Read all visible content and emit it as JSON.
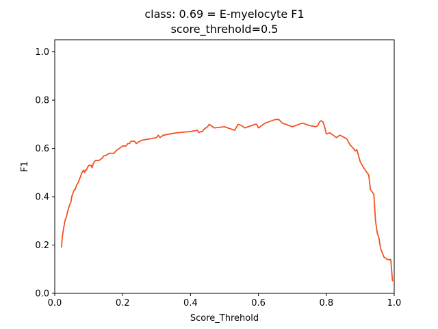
{
  "chart_data": {
    "type": "line",
    "title": "class: 0.69 = E-myelocyte F1",
    "subtitle": "score_threhold=0.5",
    "xlabel": "Score_Threhold",
    "ylabel": "F1",
    "xlim": [
      0.0,
      1.0
    ],
    "ylim": [
      0.0,
      1.05
    ],
    "xticks": [
      "0.0",
      "0.2",
      "0.4",
      "0.6",
      "0.8",
      "1.0"
    ],
    "yticks": [
      "0.0",
      "0.2",
      "0.4",
      "0.6",
      "0.8",
      "1.0"
    ],
    "grid": false,
    "line_color": "#f4511e",
    "series": [
      {
        "x": [
          0.02,
          0.022,
          0.025,
          0.03,
          0.035,
          0.038,
          0.04,
          0.045,
          0.048,
          0.05,
          0.055,
          0.058,
          0.06,
          0.065,
          0.07,
          0.072,
          0.075,
          0.08,
          0.085,
          0.088,
          0.09,
          0.093,
          0.096,
          0.1,
          0.104,
          0.107,
          0.11,
          0.114,
          0.12,
          0.13,
          0.14,
          0.145,
          0.15,
          0.16,
          0.17,
          0.175,
          0.18,
          0.19,
          0.2,
          0.21,
          0.215,
          0.22,
          0.225,
          0.23,
          0.235,
          0.24,
          0.25,
          0.26,
          0.28,
          0.3,
          0.305,
          0.31,
          0.32,
          0.34,
          0.36,
          0.4,
          0.42,
          0.425,
          0.43,
          0.435,
          0.44,
          0.45,
          0.455,
          0.46,
          0.47,
          0.5,
          0.52,
          0.53,
          0.54,
          0.55,
          0.56,
          0.58,
          0.59,
          0.595,
          0.6,
          0.62,
          0.64,
          0.65,
          0.66,
          0.67,
          0.7,
          0.72,
          0.73,
          0.75,
          0.77,
          0.775,
          0.78,
          0.785,
          0.79,
          0.795,
          0.8,
          0.81,
          0.82,
          0.83,
          0.84,
          0.86,
          0.87,
          0.88,
          0.885,
          0.89,
          0.895,
          0.9,
          0.91,
          0.915,
          0.92,
          0.925,
          0.93,
          0.935,
          0.94,
          0.945,
          0.95,
          0.955,
          0.96,
          0.97,
          0.98,
          0.99,
          0.995
        ],
        "y": [
          0.19,
          0.23,
          0.26,
          0.3,
          0.32,
          0.34,
          0.35,
          0.37,
          0.38,
          0.4,
          0.42,
          0.43,
          0.43,
          0.45,
          0.46,
          0.47,
          0.48,
          0.5,
          0.51,
          0.5,
          0.51,
          0.51,
          0.52,
          0.53,
          0.53,
          0.53,
          0.52,
          0.54,
          0.55,
          0.55,
          0.56,
          0.57,
          0.57,
          0.58,
          0.58,
          0.58,
          0.59,
          0.6,
          0.61,
          0.61,
          0.62,
          0.62,
          0.63,
          0.63,
          0.63,
          0.62,
          0.63,
          0.635,
          0.64,
          0.645,
          0.655,
          0.645,
          0.655,
          0.66,
          0.665,
          0.67,
          0.675,
          0.665,
          0.67,
          0.67,
          0.68,
          0.69,
          0.7,
          0.695,
          0.685,
          0.69,
          0.68,
          0.675,
          0.7,
          0.695,
          0.685,
          0.695,
          0.7,
          0.7,
          0.685,
          0.705,
          0.715,
          0.72,
          0.72,
          0.705,
          0.69,
          0.7,
          0.705,
          0.695,
          0.69,
          0.695,
          0.71,
          0.715,
          0.71,
          0.69,
          0.66,
          0.665,
          0.655,
          0.645,
          0.655,
          0.64,
          0.615,
          0.6,
          0.59,
          0.595,
          0.57,
          0.545,
          0.52,
          0.51,
          0.5,
          0.49,
          0.43,
          0.42,
          0.41,
          0.3,
          0.25,
          0.23,
          0.185,
          0.15,
          0.14,
          0.14,
          0.05
        ]
      }
    ]
  }
}
